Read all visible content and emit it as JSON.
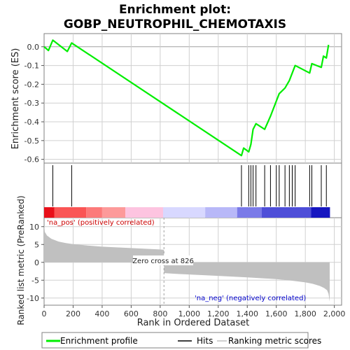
{
  "chart_data": [
    {
      "type": "line",
      "title": "Enrichment plot:",
      "subtitle": "GOBP_NEUTROPHIL_CHEMOTAXIS",
      "ylabel": "Enrichment score (ES)",
      "ylim": [
        -0.62,
        0.07
      ],
      "yticks": [
        0.0,
        -0.1,
        -0.2,
        -0.3,
        -0.4,
        -0.5,
        -0.6
      ],
      "ytick_labels": [
        "0.0",
        "-0.1",
        "-0.2",
        "-0.3",
        "-0.4",
        "-0.5",
        "-0.6"
      ],
      "grid": true,
      "series": [
        {
          "name": "Enrichment profile",
          "color": "#00ee00",
          "x": [
            0,
            30,
            60,
            160,
            190,
            1360,
            1375,
            1410,
            1425,
            1440,
            1460,
            1520,
            1560,
            1600,
            1620,
            1660,
            1690,
            1710,
            1730,
            1830,
            1845,
            1910,
            1925,
            1945,
            1960
          ],
          "y": [
            0.0,
            -0.02,
            0.035,
            -0.025,
            0.02,
            -0.58,
            -0.54,
            -0.56,
            -0.52,
            -0.44,
            -0.41,
            -0.44,
            -0.37,
            -0.29,
            -0.25,
            -0.22,
            -0.18,
            -0.14,
            -0.1,
            -0.14,
            -0.09,
            -0.11,
            -0.05,
            -0.06,
            0.01
          ]
        }
      ]
    },
    {
      "type": "scatter",
      "series": [
        {
          "name": "Hits",
          "color": "#000000",
          "x": [
            60,
            190,
            1360,
            1410,
            1425,
            1440,
            1460,
            1520,
            1560,
            1600,
            1620,
            1660,
            1690,
            1710,
            1730,
            1830,
            1845,
            1910,
            1945
          ]
        }
      ]
    },
    {
      "type": "heatmap",
      "xlim": [
        0,
        1970
      ],
      "segments": [
        {
          "x0": 0,
          "x1": 70,
          "color": "#e8101a"
        },
        {
          "x0": 70,
          "x1": 290,
          "color": "#fa5555"
        },
        {
          "x0": 290,
          "x1": 400,
          "color": "#fc7a7a"
        },
        {
          "x0": 400,
          "x1": 560,
          "color": "#fd9a9a"
        },
        {
          "x0": 560,
          "x1": 820,
          "color": "#fdc4e0"
        },
        {
          "x0": 820,
          "x1": 1110,
          "color": "#d8d8ff"
        },
        {
          "x0": 1110,
          "x1": 1330,
          "color": "#b8b8f8"
        },
        {
          "x0": 1330,
          "x1": 1500,
          "color": "#7a7ae8"
        },
        {
          "x0": 1500,
          "x1": 1840,
          "color": "#4e4ed8"
        },
        {
          "x0": 1840,
          "x1": 1970,
          "color": "#1616c0"
        }
      ]
    },
    {
      "type": "area",
      "xlabel": "Rank in Ordered Dataset",
      "ylabel": "Ranked list metric (PreRanked)",
      "ylim": [
        -12,
        12.5
      ],
      "xlim": [
        0,
        2050
      ],
      "yticks": [
        10,
        5,
        0,
        -5,
        -10
      ],
      "ytick_labels": [
        "10",
        "5",
        "0",
        "-5",
        "-10"
      ],
      "xticks": [
        0,
        200,
        400,
        600,
        800,
        1000,
        1200,
        1400,
        1600,
        1800,
        2000
      ],
      "xtick_labels": [
        "0",
        "200",
        "400",
        "600",
        "800",
        "1,000",
        "1,200",
        "1,400",
        "1,600",
        "1,800",
        "2,000"
      ],
      "series": [
        {
          "name": "Ranking metric scores",
          "color": "#c0c0c0",
          "x": [
            0,
            5,
            20,
            50,
            100,
            150,
            200,
            300,
            400,
            500,
            600,
            700,
            800,
            826,
            826,
            900,
            1000,
            1200,
            1400,
            1600,
            1700,
            1800,
            1850,
            1900,
            1930,
            1950,
            1960,
            1968
          ],
          "y": [
            10.5,
            8.5,
            7.5,
            6.6,
            5.8,
            5.4,
            5.1,
            4.7,
            4.4,
            4.2,
            4.0,
            3.8,
            3.6,
            3.5,
            -3.0,
            -3.2,
            -3.4,
            -3.8,
            -4.2,
            -4.7,
            -5.1,
            -5.6,
            -6.0,
            -6.6,
            -7.2,
            -7.8,
            -8.8,
            -11.0
          ]
        }
      ],
      "annotations": {
        "pos_label": "'na_pos' (positively correlated)",
        "neg_label": "'na_neg' (negatively correlated)",
        "zero_cross": "Zero cross at 826",
        "zero_cross_x": 826
      }
    }
  ],
  "legend": {
    "items": [
      {
        "label": "Enrichment profile",
        "color": "#00ee00",
        "kind": "thick-line"
      },
      {
        "label": "Hits",
        "color": "#000000",
        "kind": "line"
      },
      {
        "label": "Ranking metric scores",
        "color": "#c0c0c0",
        "kind": "line"
      }
    ]
  },
  "colors": {
    "frame": "#808080",
    "grid": "#d0d0d0",
    "zero_line": "#a0a0a0",
    "pos_label": "#cc0000",
    "neg_label": "#0000cc"
  }
}
